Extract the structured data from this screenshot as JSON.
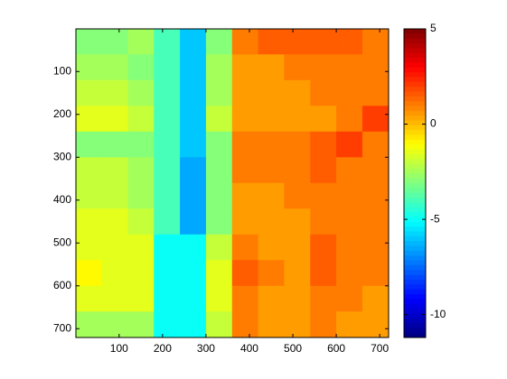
{
  "chart_data": {
    "type": "heatmap",
    "colormap": "jet",
    "x": [
      30,
      90,
      150,
      210,
      270,
      330,
      390,
      450,
      510,
      570,
      630,
      690
    ],
    "y": [
      30,
      90,
      150,
      210,
      270,
      330,
      390,
      450,
      510,
      570,
      630,
      690
    ],
    "values": [
      [
        -3,
        -3,
        -2.5,
        -4,
        -6,
        -3,
        1,
        1.5,
        1.5,
        1.5,
        1.5,
        1
      ],
      [
        -2.5,
        -2.5,
        -3,
        -4,
        -6,
        -2.5,
        0.5,
        0.5,
        1,
        1,
        1,
        1
      ],
      [
        -2,
        -2,
        -2.5,
        -4,
        -6,
        -2.5,
        0.5,
        0.5,
        0.5,
        1,
        1,
        1
      ],
      [
        -1.5,
        -1.5,
        -2,
        -4,
        -6,
        -2,
        0.5,
        0.5,
        0.5,
        0.5,
        1,
        2
      ],
      [
        -3,
        -3,
        -3,
        -4,
        -6,
        -3,
        1,
        1,
        1,
        1.5,
        2,
        1
      ],
      [
        -2,
        -2,
        -2.5,
        -4,
        -6.5,
        -3,
        1,
        1,
        1,
        1.5,
        1,
        1
      ],
      [
        -2,
        -2,
        -2.5,
        -4,
        -6.5,
        -3,
        0.5,
        0.5,
        1,
        1,
        1,
        1
      ],
      [
        -1.5,
        -1.5,
        -2,
        -4,
        -6.5,
        -3,
        0.5,
        0.5,
        0.5,
        1,
        1,
        1
      ],
      [
        -1.5,
        -1.5,
        -1.5,
        -5,
        -5,
        -2,
        1,
        0.5,
        0.5,
        1.5,
        1,
        1
      ],
      [
        -1,
        -1.5,
        -1.5,
        -5,
        -5,
        -1.5,
        1.5,
        1,
        0.5,
        1.5,
        1,
        1
      ],
      [
        -1.5,
        -1.5,
        -1.5,
        -5,
        -5,
        -1.5,
        1,
        0.5,
        0.5,
        1,
        1,
        0.5
      ],
      [
        -2.5,
        -2.5,
        -2.5,
        -5,
        -5,
        -2,
        1,
        0.5,
        0.5,
        1,
        0.5,
        0.5
      ]
    ],
    "xlim": [
      0.5,
      720.5
    ],
    "xticks": [
      100,
      200,
      300,
      400,
      500,
      600,
      700
    ],
    "ylim": [
      0.5,
      720.5
    ],
    "yticks": [
      100,
      200,
      300,
      400,
      500,
      600,
      700
    ],
    "y_reversed": true,
    "clim": [
      -11.2,
      5
    ],
    "cticks": [
      -10,
      -5,
      0,
      5
    ]
  }
}
